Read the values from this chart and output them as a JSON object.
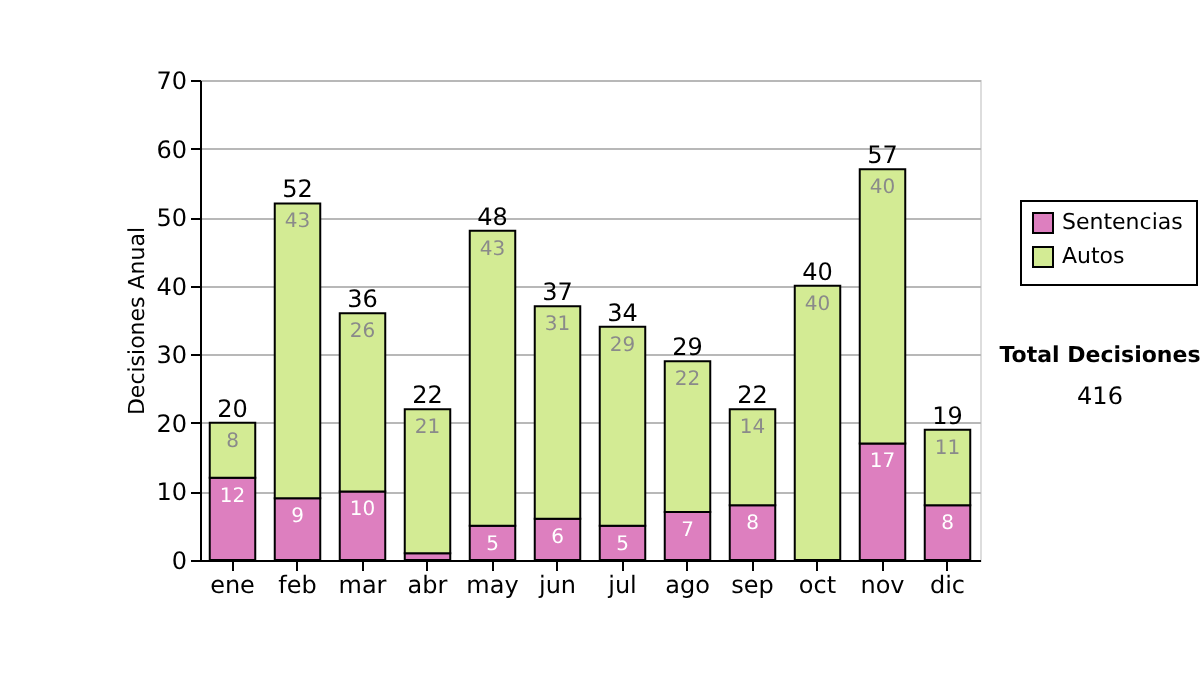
{
  "chart_data": {
    "type": "bar",
    "stacked": true,
    "ylabel": "Decisiones Anual",
    "categories": [
      "ene",
      "feb",
      "mar",
      "abr",
      "may",
      "jun",
      "jul",
      "ago",
      "sep",
      "oct",
      "nov",
      "dic"
    ],
    "series": [
      {
        "name": "Sentencias",
        "color": "#dd7fbf",
        "values": [
          12,
          9,
          10,
          1,
          5,
          6,
          5,
          7,
          8,
          0,
          17,
          8
        ],
        "value_labels": [
          "12",
          "9",
          "10",
          null,
          "5",
          "6",
          "5",
          "7",
          "8",
          null,
          "17",
          "8"
        ]
      },
      {
        "name": "Autos",
        "color": "#d3eb94",
        "values": [
          8,
          43,
          26,
          21,
          43,
          31,
          29,
          22,
          14,
          40,
          40,
          11
        ],
        "value_labels": [
          "8",
          "43",
          "26",
          "21",
          "43",
          "31",
          "29",
          "22",
          "14",
          "40",
          "40",
          "11"
        ]
      }
    ],
    "totals": [
      "20",
      "52",
      "36",
      "22",
      "48",
      "37",
      "34",
      "29",
      "22",
      "40",
      "57",
      "19"
    ],
    "ylim": [
      0,
      70
    ],
    "yticks": [
      0,
      10,
      20,
      30,
      40,
      50,
      60,
      70
    ],
    "grid": "y",
    "legend": "right",
    "annotations": [
      "Total Decisiones",
      "416"
    ]
  }
}
